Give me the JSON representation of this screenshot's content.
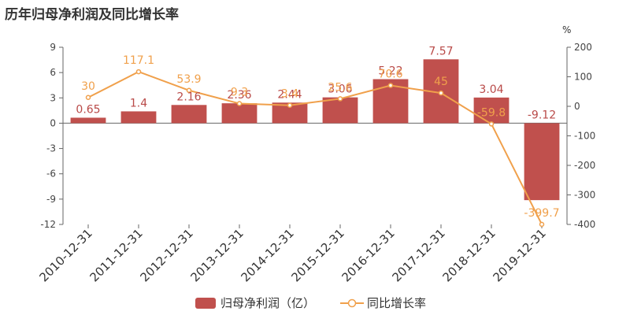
{
  "title": "历年归母净利润及同比增长率",
  "colors": {
    "bar": "#c0504d",
    "line": "#f0a04b",
    "grid": "#e6e6e6",
    "axis": "#666666"
  },
  "chart_data": {
    "type": "bar+line",
    "title": "历年归母净利润及同比增长率",
    "categories": [
      "2010-12-31",
      "2011-12-31",
      "2012-12-31",
      "2013-12-31",
      "2014-12-31",
      "2015-12-31",
      "2016-12-31",
      "2017-12-31",
      "2018-12-31",
      "2019-12-31"
    ],
    "series": [
      {
        "name": "归母净利润（亿）",
        "type": "bar",
        "axis": "left",
        "values": [
          0.65,
          1.4,
          2.16,
          2.36,
          2.44,
          3.06,
          5.22,
          7.57,
          3.04,
          -9.12
        ],
        "labels": [
          "0.65",
          "1.4",
          "2.16",
          "2.36",
          "2.44",
          "3.06",
          "5.22",
          "7.57",
          "3.04",
          "-9.12"
        ]
      },
      {
        "name": "同比增长率",
        "type": "line",
        "axis": "right",
        "values": [
          30,
          117.1,
          53.9,
          9.3,
          3.4,
          25.6,
          70.6,
          45,
          -59.8,
          -399.7
        ],
        "labels": [
          "30",
          "117.1",
          "53.9",
          "9.3",
          "3.4",
          "25.6",
          "70.6",
          "45",
          "-59.8",
          "-399.7"
        ]
      }
    ],
    "yleft": {
      "min": -12,
      "max": 9,
      "ticks": [
        9,
        6,
        3,
        0,
        -3,
        -6,
        -9,
        -12
      ]
    },
    "yright": {
      "min": -400,
      "max": 200,
      "unit": "%",
      "ticks": [
        200,
        100,
        0,
        -100,
        -200,
        -300,
        -400
      ]
    },
    "legend_position": "bottom-center",
    "grid": false
  }
}
